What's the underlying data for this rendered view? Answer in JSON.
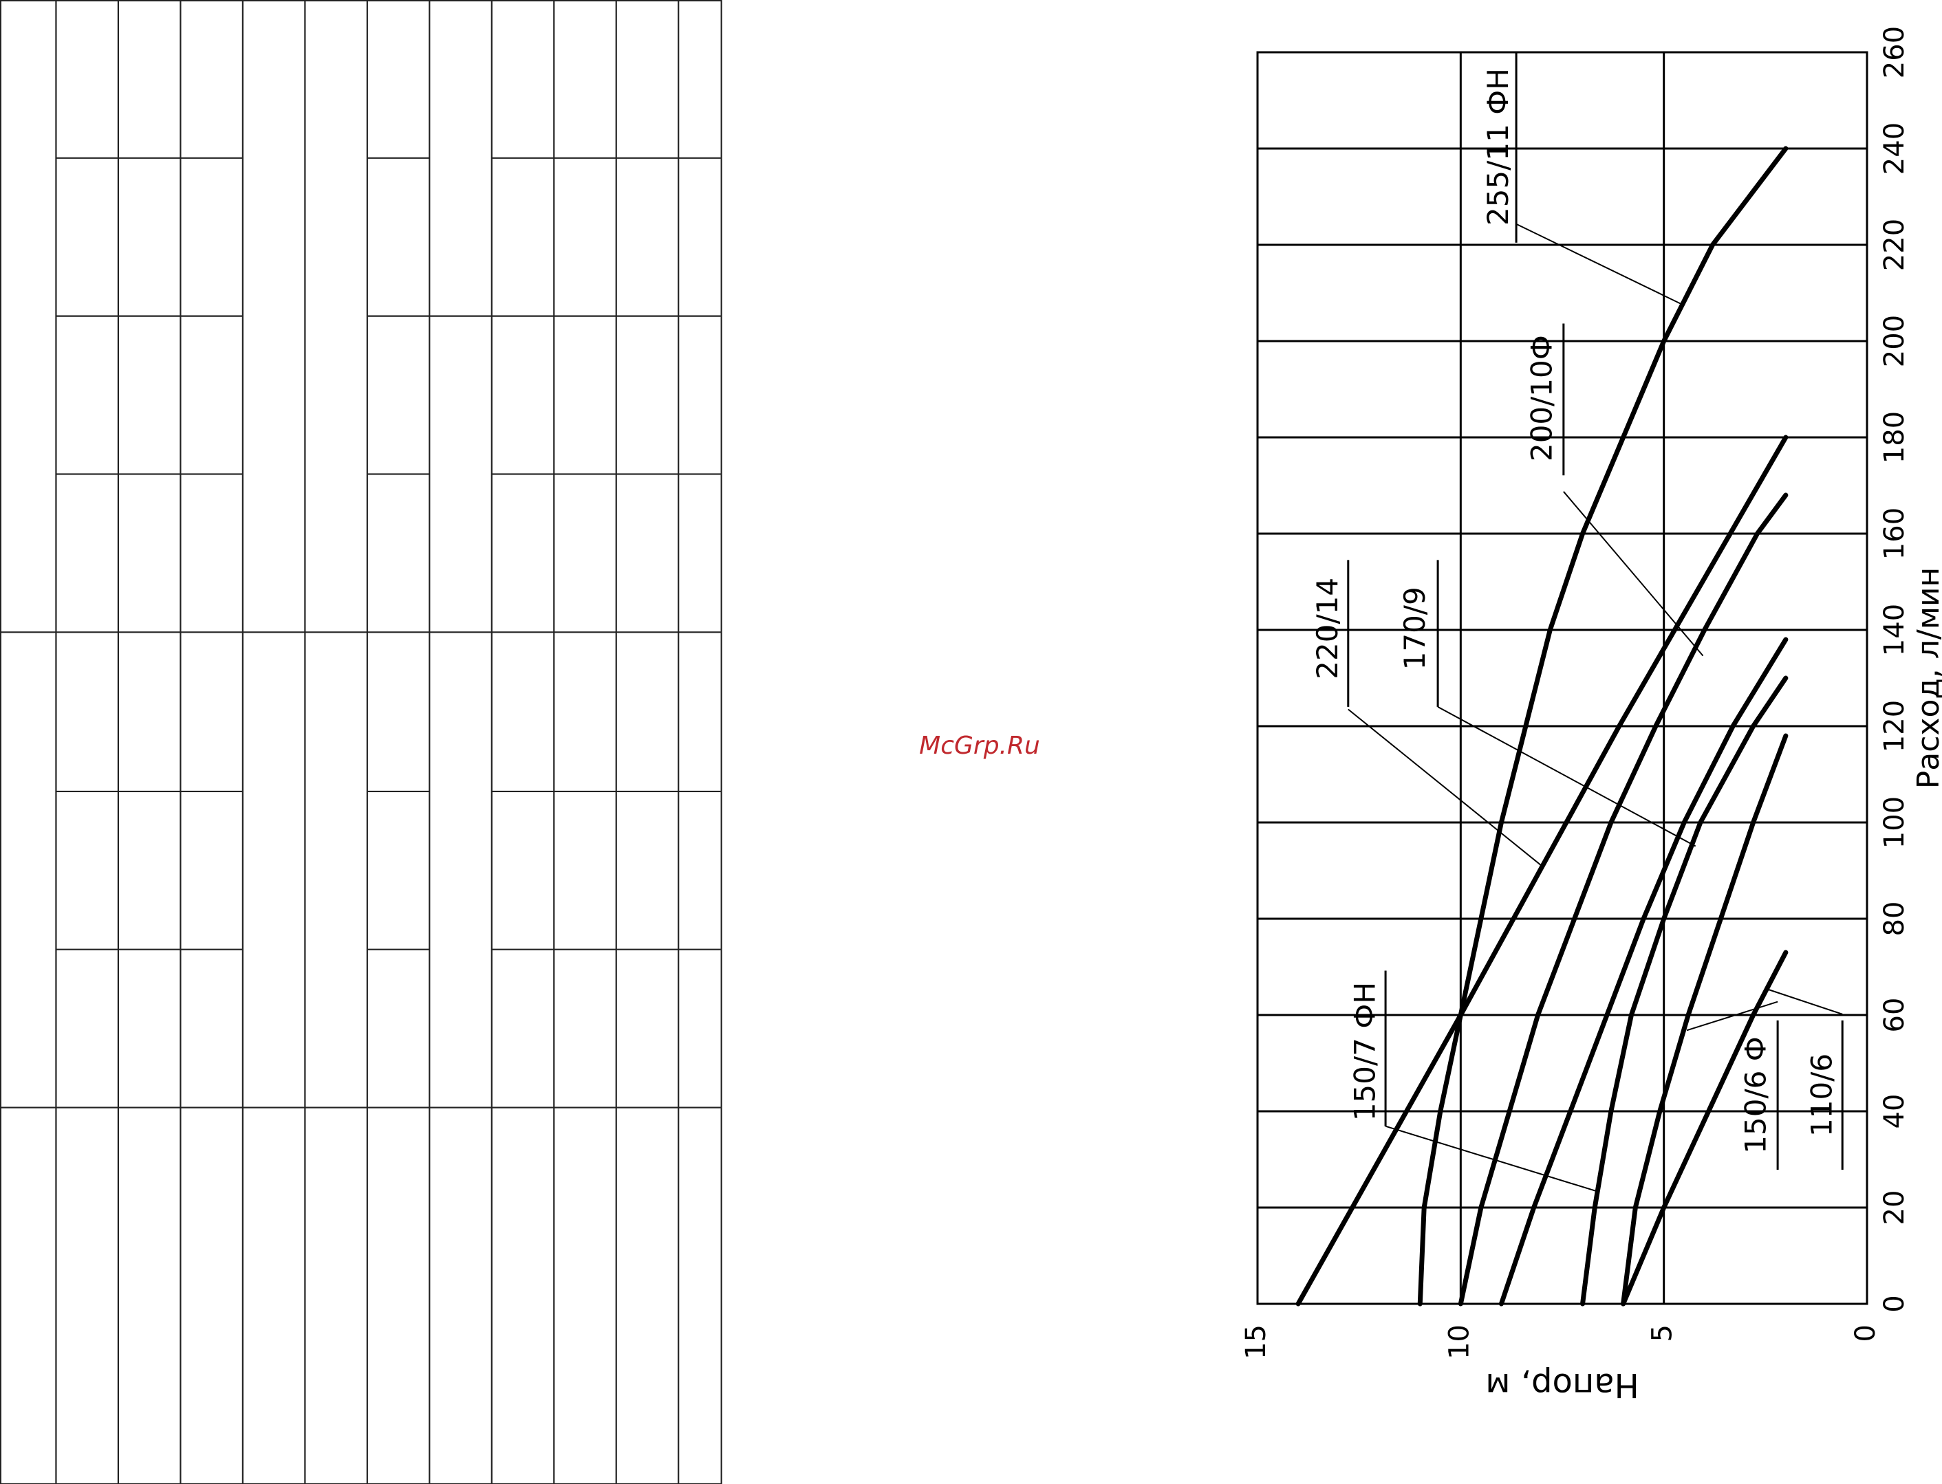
{
  "watermark": "McGrp.Ru",
  "chart_data": {
    "type": "line",
    "xlabel": "Расход, л/мин",
    "ylabel": "Напор, м",
    "xlim": [
      0,
      260
    ],
    "ylim": [
      0,
      15
    ],
    "xticks": [
      0,
      20,
      40,
      60,
      80,
      100,
      120,
      140,
      160,
      180,
      200,
      220,
      240,
      260
    ],
    "yticks": [
      0,
      5,
      10,
      15
    ],
    "grid": true,
    "series": [
      {
        "name": "255/11 ФН",
        "color": "#000000",
        "x": [
          0,
          20,
          40,
          60,
          80,
          100,
          120,
          140,
          160,
          180,
          200,
          220,
          240
        ],
        "values": [
          11,
          10.9,
          10.5,
          10,
          9.5,
          9,
          8.4,
          7.8,
          7,
          6,
          5,
          3.8,
          2
        ]
      },
      {
        "name": "200/10Ф",
        "color": "#000000",
        "x": [
          0,
          20,
          40,
          60,
          80,
          100,
          120,
          140,
          160,
          168
        ],
        "values": [
          10,
          9.5,
          8.8,
          8.1,
          7.2,
          6.3,
          5.2,
          4,
          2.7,
          2
        ]
      },
      {
        "name": "220/14",
        "color": "#000000",
        "x": [
          0,
          60,
          120,
          180
        ],
        "values": [
          14,
          10,
          6.1,
          2
        ]
      },
      {
        "name": "170/9",
        "color": "#000000",
        "x": [
          0,
          20,
          40,
          60,
          80,
          100,
          120,
          138
        ],
        "values": [
          9,
          8.2,
          7.3,
          6.4,
          5.5,
          4.5,
          3.3,
          2
        ]
      },
      {
        "name": "150/7 ФН",
        "color": "#000000",
        "x": [
          0,
          20,
          40,
          60,
          80,
          100,
          120,
          130
        ],
        "values": [
          7,
          6.7,
          6.3,
          5.8,
          5,
          4.1,
          2.8,
          2
        ]
      },
      {
        "name": "150/6 Ф",
        "color": "#000000",
        "x": [
          0,
          20,
          40,
          60,
          80,
          100,
          118
        ],
        "values": [
          6,
          5.7,
          5.1,
          4.4,
          3.6,
          2.8,
          2
        ]
      },
      {
        "name": "110/6",
        "color": "#000000",
        "x": [
          0,
          20,
          40,
          60,
          73
        ],
        "values": [
          6,
          5,
          3.9,
          2.8,
          2
        ]
      }
    ]
  }
}
